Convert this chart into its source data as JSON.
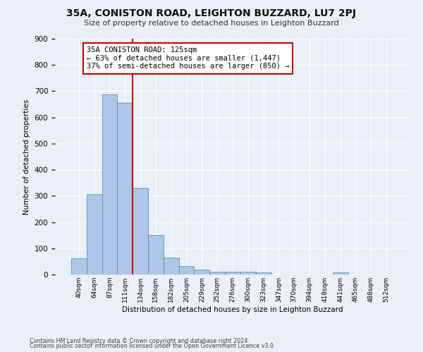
{
  "title": "35A, CONISTON ROAD, LEIGHTON BUZZARD, LU7 2PJ",
  "subtitle": "Size of property relative to detached houses in Leighton Buzzard",
  "xlabel": "Distribution of detached houses by size in Leighton Buzzard",
  "ylabel": "Number of detached properties",
  "bar_labels": [
    "40sqm",
    "64sqm",
    "87sqm",
    "111sqm",
    "134sqm",
    "158sqm",
    "182sqm",
    "205sqm",
    "229sqm",
    "252sqm",
    "276sqm",
    "300sqm",
    "323sqm",
    "347sqm",
    "370sqm",
    "394sqm",
    "418sqm",
    "441sqm",
    "465sqm",
    "488sqm",
    "512sqm"
  ],
  "bar_values": [
    62,
    307,
    688,
    655,
    330,
    150,
    65,
    32,
    20,
    12,
    12,
    10,
    9,
    0,
    0,
    0,
    0,
    8,
    0,
    0,
    0
  ],
  "bar_color": "#aec6e8",
  "bar_edge_color": "#5a8fc2",
  "property_line_x": 3.5,
  "property_line_color": "#cc0000",
  "annotation_title": "35A CONISTON ROAD: 125sqm",
  "annotation_line1": "← 63% of detached houses are smaller (1,447)",
  "annotation_line2": "37% of semi-detached houses are larger (850) →",
  "annotation_box_color": "#ffffff",
  "annotation_box_edge": "#cc0000",
  "ylim": [
    0,
    900
  ],
  "yticks": [
    0,
    100,
    200,
    300,
    400,
    500,
    600,
    700,
    800,
    900
  ],
  "bg_color": "#eaeff8",
  "fig_bg_color": "#eaeff8",
  "grid_color": "#ffffff",
  "footer1": "Contains HM Land Registry data © Crown copyright and database right 2024.",
  "footer2": "Contains public sector information licensed under the Open Government Licence v3.0."
}
